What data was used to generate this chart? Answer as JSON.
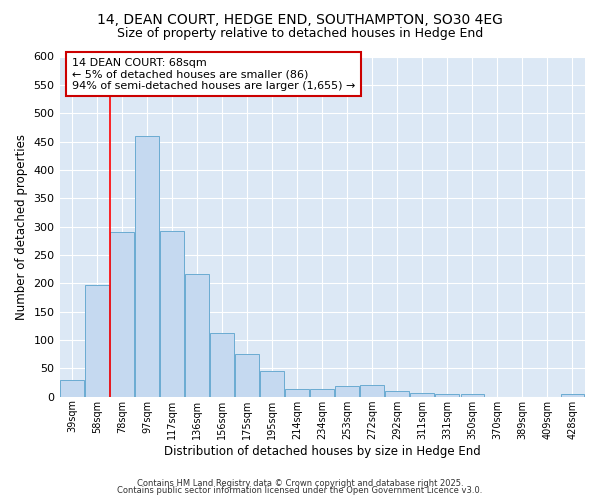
{
  "title1": "14, DEAN COURT, HEDGE END, SOUTHAMPTON, SO30 4EG",
  "title2": "Size of property relative to detached houses in Hedge End",
  "xlabel": "Distribution of detached houses by size in Hedge End",
  "ylabel": "Number of detached properties",
  "categories": [
    "39sqm",
    "58sqm",
    "78sqm",
    "97sqm",
    "117sqm",
    "136sqm",
    "156sqm",
    "175sqm",
    "195sqm",
    "214sqm",
    "234sqm",
    "253sqm",
    "272sqm",
    "292sqm",
    "311sqm",
    "331sqm",
    "350sqm",
    "370sqm",
    "389sqm",
    "409sqm",
    "428sqm"
  ],
  "values": [
    30,
    197,
    290,
    460,
    293,
    217,
    112,
    75,
    46,
    14,
    14,
    18,
    20,
    10,
    7,
    5,
    5,
    0,
    0,
    0,
    5
  ],
  "bar_color": "#c5d9f0",
  "bar_edge_color": "#6aabd2",
  "red_line_x": 1.5,
  "annotation_text": "14 DEAN COURT: 68sqm\n← 5% of detached houses are smaller (86)\n94% of semi-detached houses are larger (1,655) →",
  "annotation_box_color": "#ffffff",
  "annotation_box_edge": "#cc0000",
  "footer1": "Contains HM Land Registry data © Crown copyright and database right 2025.",
  "footer2": "Contains public sector information licensed under the Open Government Licence v3.0.",
  "ylim": [
    0,
    600
  ],
  "yticks": [
    0,
    50,
    100,
    150,
    200,
    250,
    300,
    350,
    400,
    450,
    500,
    550,
    600
  ],
  "bg_color": "#dce8f5",
  "grid_color": "#ffffff",
  "fig_bg_color": "#ffffff",
  "title1_fontsize": 10,
  "title2_fontsize": 9,
  "annot_fontsize": 8
}
